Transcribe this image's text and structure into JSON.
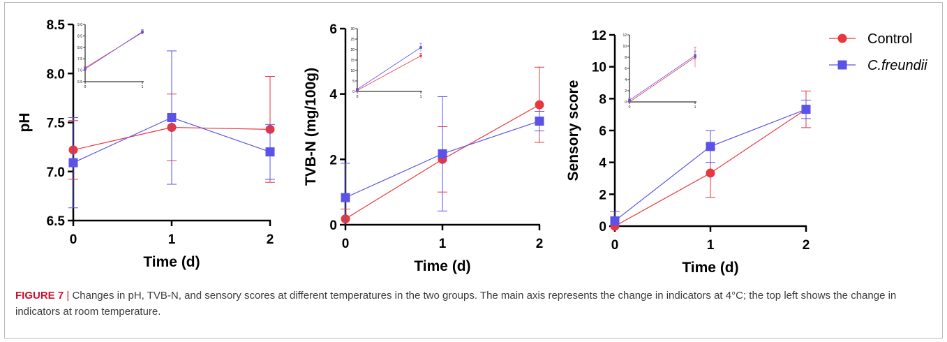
{
  "legend": {
    "items": [
      {
        "label": "Control",
        "color": "#e8373e",
        "marker": "circle",
        "italic": false
      },
      {
        "label": "C.freundii",
        "color": "#5b52e8",
        "marker": "square",
        "italic": true
      }
    ]
  },
  "chart_data": [
    {
      "type": "line",
      "xlabel": "Time (d)",
      "ylabel": "pH",
      "x": [
        0,
        1,
        2
      ],
      "xticks": [
        "0",
        "1",
        "2"
      ],
      "ylim": [
        6.5,
        8.5
      ],
      "yticks": [
        "6.5",
        "7.0",
        "7.5",
        "8.0",
        "8.5"
      ],
      "series": [
        {
          "name": "Control",
          "values": [
            7.22,
            7.45,
            7.43
          ],
          "errors": [
            0.3,
            0.34,
            0.54
          ]
        },
        {
          "name": "C.freundii",
          "values": [
            7.09,
            7.55,
            7.2
          ],
          "errors": [
            0.46,
            0.68,
            0.28
          ]
        }
      ],
      "inset": {
        "x": [
          0,
          1
        ],
        "xticks": [
          "0",
          "1"
        ],
        "ylim": [
          6.5,
          9.0
        ],
        "yticks": [
          "6.5",
          "7.0",
          "7.5",
          "8.0",
          "8.5",
          "9.0"
        ],
        "series": [
          {
            "name": "Control",
            "values": [
              7.1,
              8.65
            ],
            "errors": [
              0.05,
              0.08
            ]
          },
          {
            "name": "C.freundii",
            "values": [
              7.05,
              8.68
            ],
            "errors": [
              0.04,
              0.1
            ]
          }
        ]
      }
    },
    {
      "type": "line",
      "xlabel": "Time (d)",
      "ylabel": "TVB-N (mg/100g)",
      "x": [
        0,
        1,
        2
      ],
      "xticks": [
        "0",
        "1",
        "2"
      ],
      "ylim": [
        0,
        6
      ],
      "yticks": [
        "0",
        "2",
        "4",
        "6"
      ],
      "series": [
        {
          "name": "Control",
          "values": [
            0.18,
            2.0,
            3.67
          ],
          "errors": [
            0.3,
            1.0,
            1.15
          ]
        },
        {
          "name": "C.freundii",
          "values": [
            0.83,
            2.17,
            3.17
          ],
          "errors": [
            1.05,
            1.75,
            0.3
          ]
        }
      ],
      "inset": {
        "x": [
          0,
          1
        ],
        "xticks": [
          "0",
          "1"
        ],
        "ylim": [
          0,
          30
        ],
        "yticks": [
          "0",
          "5",
          "10",
          "15",
          "20",
          "25",
          "30"
        ],
        "series": [
          {
            "name": "Control",
            "values": [
              0.5,
              17
            ],
            "errors": [
              0.3,
              1.2
            ]
          },
          {
            "name": "C.freundii",
            "values": [
              1.0,
              21
            ],
            "errors": [
              0.4,
              2.0
            ]
          }
        ]
      }
    },
    {
      "type": "line",
      "xlabel": "Time (d)",
      "ylabel": "Sensory score",
      "x": [
        0,
        1,
        2
      ],
      "xticks": [
        "0",
        "1",
        "2"
      ],
      "ylim": [
        0,
        12
      ],
      "yticks": [
        "0",
        "2",
        "4",
        "6",
        "8",
        "10",
        "12"
      ],
      "series": [
        {
          "name": "Control",
          "values": [
            0.0,
            3.33,
            7.33
          ],
          "errors": [
            0.0,
            1.53,
            1.15
          ]
        },
        {
          "name": "C.freundii",
          "values": [
            0.33,
            5.0,
            7.33
          ],
          "errors": [
            0.58,
            1.0,
            0.58
          ]
        }
      ],
      "inset": {
        "x": [
          0,
          1
        ],
        "xticks": [
          "0",
          "1"
        ],
        "ylim": [
          0,
          12
        ],
        "yticks": [
          "0",
          "2",
          "4",
          "6",
          "8",
          "10",
          "12"
        ],
        "series": [
          {
            "name": "Control",
            "values": [
              0.0,
              8.0
            ],
            "errors": [
              0.0,
              1.8
            ]
          },
          {
            "name": "C.freundii",
            "values": [
              0.3,
              8.3
            ],
            "errors": [
              0.4,
              0.8
            ]
          }
        ]
      }
    }
  ],
  "caption": {
    "label": "FIGURE 7",
    "separator": "|",
    "text": "Changes in pH, TVB-N, and sensory scores at different temperatures in the two groups. The main axis represents the change in indicators at 4°C; the top left shows the change in indicators at room temperature."
  }
}
